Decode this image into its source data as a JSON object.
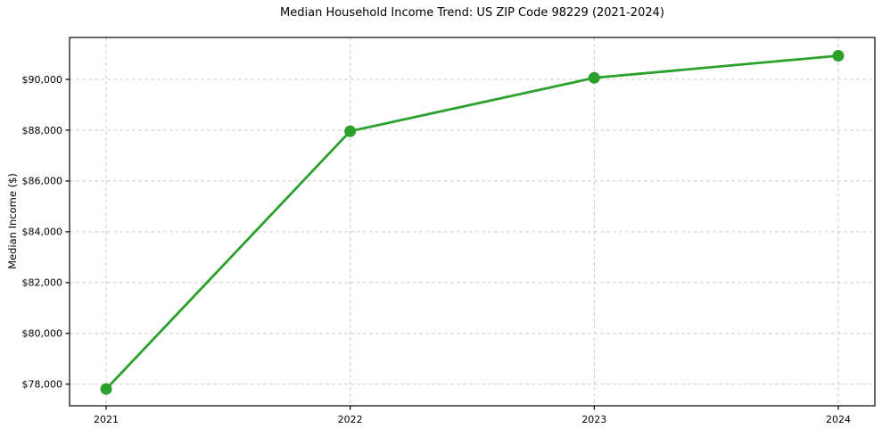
{
  "chart_data": {
    "type": "line",
    "title": "Median Household Income Trend: US ZIP Code 98229 (2021-2024)",
    "xlabel": "",
    "ylabel": "Median Income ($)",
    "x": [
      2021,
      2022,
      2023,
      2024
    ],
    "x_tick_labels": [
      "2021",
      "2022",
      "2023",
      "2024"
    ],
    "series": [
      {
        "name": "Median Household Income",
        "values": [
          77810,
          87960,
          90060,
          90930
        ],
        "color": "#2ca02c",
        "marker": "circle"
      }
    ],
    "xlim": [
      2020.85,
      2024.15
    ],
    "ylim": [
      77150,
      91650
    ],
    "yticks": [
      78000,
      80000,
      82000,
      84000,
      86000,
      88000,
      90000
    ],
    "ytick_prefix": "$",
    "grid": "dashed-both",
    "grid_color": "#cccccc",
    "axis_color": "#000000",
    "background": "#ffffff",
    "legend": "none"
  }
}
